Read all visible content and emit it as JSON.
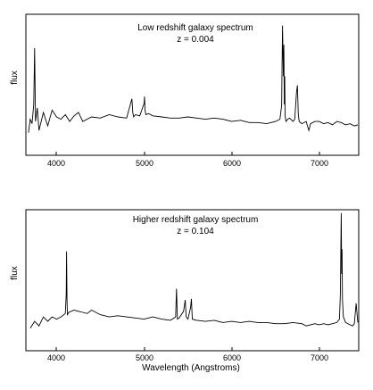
{
  "chart_data": [
    {
      "type": "line",
      "title": "Low redshift galaxy spectrum",
      "subtitle": "z = 0.004",
      "xlabel": "",
      "ylabel": "flux",
      "xlim": [
        3650,
        7450
      ],
      "ylim": [
        0,
        1.25
      ],
      "xticks": [
        4000,
        5000,
        6000,
        7000
      ],
      "yticks": [],
      "grid": false,
      "series": [
        {
          "x": [
            3680,
            3700,
            3720,
            3740,
            3750,
            3760,
            3780,
            3800,
            3850,
            3900,
            3950,
            4000,
            4050,
            4100,
            4150,
            4200,
            4250,
            4300,
            4400,
            4500,
            4600,
            4700,
            4800,
            4860,
            4870,
            4880,
            4900,
            4950,
            5000,
            5005,
            5010,
            5020,
            5050,
            5100,
            5200,
            5300,
            5400,
            5500,
            5600,
            5700,
            5800,
            5900,
            6000,
            6100,
            6200,
            6300,
            6400,
            6500,
            6550,
            6570,
            6580,
            6590,
            6595,
            6600,
            6605,
            6610,
            6620,
            6640,
            6660,
            6700,
            6720,
            6740,
            6750,
            6760,
            6770,
            6800,
            6850,
            6880,
            6900,
            6950,
            7000,
            7050,
            7100,
            7150,
            7200,
            7250,
            7300,
            7350,
            7400,
            7440
          ],
          "y": [
            0.2,
            0.32,
            0.28,
            0.45,
            0.95,
            0.3,
            0.42,
            0.22,
            0.38,
            0.26,
            0.4,
            0.34,
            0.32,
            0.36,
            0.3,
            0.35,
            0.38,
            0.3,
            0.34,
            0.33,
            0.36,
            0.34,
            0.33,
            0.5,
            0.38,
            0.34,
            0.36,
            0.35,
            0.46,
            0.52,
            0.4,
            0.36,
            0.37,
            0.35,
            0.34,
            0.33,
            0.33,
            0.34,
            0.33,
            0.32,
            0.33,
            0.32,
            0.3,
            0.31,
            0.29,
            0.29,
            0.28,
            0.3,
            0.32,
            0.44,
            1.15,
            0.7,
            0.98,
            0.45,
            0.7,
            0.35,
            0.3,
            0.32,
            0.33,
            0.3,
            0.32,
            0.56,
            0.62,
            0.36,
            0.3,
            0.28,
            0.3,
            0.22,
            0.28,
            0.3,
            0.3,
            0.28,
            0.29,
            0.27,
            0.3,
            0.29,
            0.27,
            0.28,
            0.26,
            0.27
          ]
        }
      ]
    },
    {
      "type": "line",
      "title": "Higher redshift galaxy spectrum",
      "subtitle": "z = 0.104",
      "xlabel": "Wavelength (Angstroms)",
      "ylabel": "flux",
      "xlim": [
        3650,
        7450
      ],
      "ylim": [
        0,
        1.25
      ],
      "xticks": [
        4000,
        5000,
        6000,
        7000
      ],
      "yticks": [],
      "grid": false,
      "series": [
        {
          "x": [
            3700,
            3750,
            3800,
            3850,
            3900,
            3950,
            4000,
            4050,
            4100,
            4110,
            4115,
            4120,
            4125,
            4140,
            4200,
            4250,
            4300,
            4350,
            4400,
            4500,
            4600,
            4700,
            4800,
            4900,
            5000,
            5100,
            5200,
            5300,
            5360,
            5370,
            5380,
            5400,
            5450,
            5470,
            5480,
            5500,
            5530,
            5540,
            5550,
            5600,
            5700,
            5800,
            5900,
            6000,
            6100,
            6200,
            6300,
            6400,
            6500,
            6600,
            6700,
            6800,
            6850,
            6900,
            6950,
            7000,
            7050,
            7100,
            7150,
            7200,
            7230,
            7240,
            7250,
            7255,
            7260,
            7265,
            7275,
            7300,
            7350,
            7380,
            7400,
            7420,
            7440
          ],
          "y": [
            0.2,
            0.26,
            0.22,
            0.3,
            0.26,
            0.3,
            0.28,
            0.3,
            0.33,
            0.5,
            0.88,
            0.45,
            0.32,
            0.34,
            0.36,
            0.35,
            0.34,
            0.33,
            0.36,
            0.32,
            0.3,
            0.31,
            0.3,
            0.29,
            0.28,
            0.3,
            0.28,
            0.27,
            0.3,
            0.55,
            0.28,
            0.29,
            0.35,
            0.45,
            0.3,
            0.28,
            0.38,
            0.46,
            0.28,
            0.27,
            0.26,
            0.27,
            0.25,
            0.26,
            0.25,
            0.26,
            0.25,
            0.25,
            0.24,
            0.24,
            0.25,
            0.24,
            0.22,
            0.23,
            0.24,
            0.23,
            0.24,
            0.23,
            0.24,
            0.25,
            0.28,
            0.5,
            1.22,
            0.68,
            0.9,
            0.45,
            0.3,
            0.25,
            0.23,
            0.22,
            0.24,
            0.42,
            0.25
          ]
        }
      ]
    }
  ]
}
